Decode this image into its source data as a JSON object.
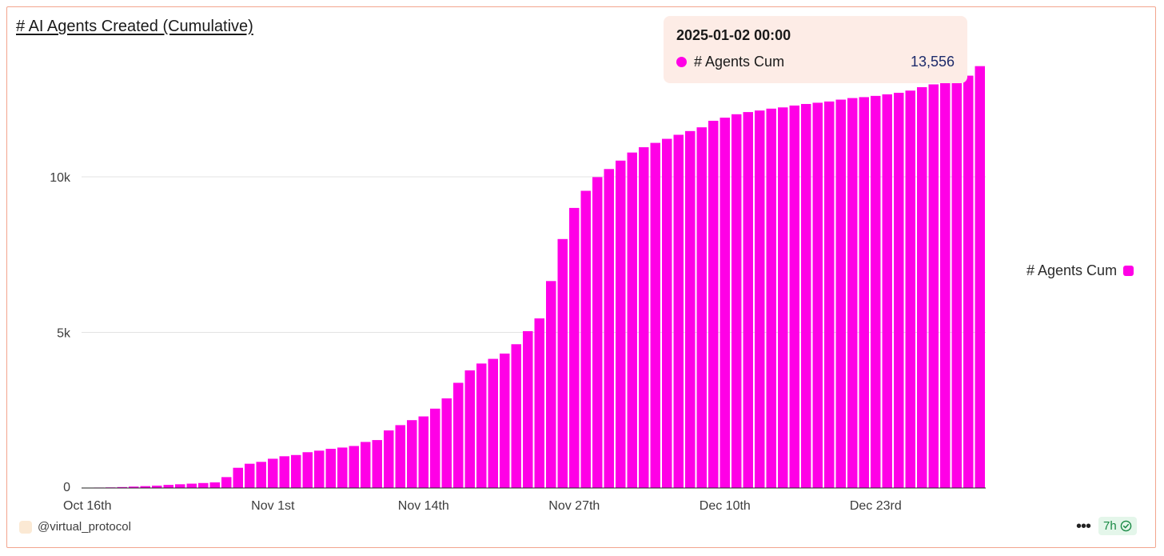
{
  "header": {
    "title": "# AI Agents Created (Cumulative)"
  },
  "tooltip": {
    "date": "2025-01-02 00:00",
    "series": "# Agents Cum",
    "value": "13,556"
  },
  "legend": {
    "label": "# Agents Cum"
  },
  "footer": {
    "author": "@virtual_protocol",
    "age": "7h"
  },
  "colors": {
    "bar": "#ff00e6",
    "accent_border": "#f2a58e",
    "tooltip_bg": "#fdece6",
    "badge": "#1a8a45"
  },
  "icons": {
    "more": "more-dots-icon",
    "verified": "check-circle-icon"
  },
  "chart_data": {
    "type": "bar",
    "series_name": "# Agents Cum",
    "x_start": "2024-10-16",
    "x_ticks": [
      "Oct 16th",
      "Nov 1st",
      "Nov 14th",
      "Nov 27th",
      "Dec 10th",
      "Dec 23rd"
    ],
    "y_ticks": [
      "0",
      "5k",
      "10k"
    ],
    "ylim": [
      0,
      14000
    ],
    "grid": true,
    "legend_position": "right",
    "values": [
      10,
      15,
      20,
      30,
      45,
      60,
      75,
      100,
      120,
      140,
      160,
      180,
      350,
      650,
      780,
      840,
      940,
      1020,
      1060,
      1150,
      1200,
      1260,
      1300,
      1350,
      1480,
      1540,
      1850,
      2020,
      2180,
      2300,
      2550,
      2880,
      3380,
      3780,
      4000,
      4150,
      4320,
      4620,
      5040,
      5450,
      6650,
      8000,
      9000,
      9550,
      9990,
      10250,
      10520,
      10780,
      10950,
      11090,
      11220,
      11350,
      11470,
      11590,
      11800,
      11900,
      12010,
      12080,
      12130,
      12190,
      12230,
      12290,
      12340,
      12380,
      12420,
      12480,
      12530,
      12560,
      12600,
      12650,
      12700,
      12770,
      12880,
      12970,
      13080,
      13150,
      13250,
      13556
    ]
  }
}
